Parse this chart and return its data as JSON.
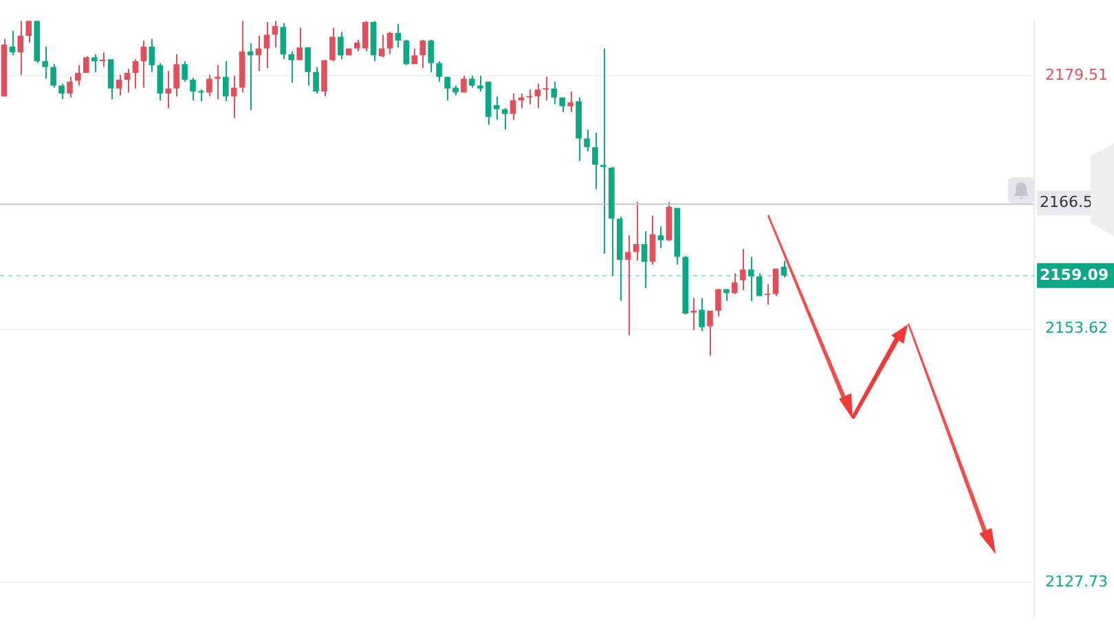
{
  "chart_data": {
    "type": "candlestick",
    "categories": [
      null,
      null,
      null,
      null,
      null,
      null,
      null,
      null,
      null,
      null,
      null,
      null,
      null,
      null,
      null,
      null,
      null,
      null,
      null,
      null,
      null,
      null,
      null,
      null,
      null,
      null,
      null,
      null,
      null,
      null,
      null,
      null,
      null,
      null,
      null,
      null,
      null,
      null,
      null,
      null,
      null,
      null,
      null,
      null,
      null,
      null,
      null,
      null,
      null,
      null,
      null,
      null,
      null,
      null,
      null,
      null,
      null,
      null,
      null,
      null,
      null,
      null,
      null,
      null,
      null,
      null,
      null,
      null,
      null,
      null,
      null,
      null,
      null,
      null,
      null,
      null,
      null,
      null,
      null,
      null,
      null,
      null,
      null,
      null,
      null,
      null,
      null,
      null,
      null,
      null,
      null,
      null,
      null,
      null,
      null,
      null,
      null,
      null,
      null,
      null,
      null,
      null,
      null,
      null,
      null,
      null,
      null,
      null,
      null,
      null,
      null,
      null,
      null,
      null,
      null,
      null,
      null,
      null,
      null,
      null,
      null,
      null,
      null,
      null,
      null,
      null
    ],
    "ohlc": [
      [
        2177.4,
        2183.3,
        2177.4,
        2182.7
      ],
      [
        2182.5,
        2184.1,
        2181.6,
        2181.9
      ],
      [
        2181.9,
        2185.1,
        2179.6,
        2183.6
      ],
      [
        2183.6,
        2185.1,
        2182.9,
        2185.1
      ],
      [
        2185.1,
        2185.1,
        2180.8,
        2181.0
      ],
      [
        2181.0,
        2182.5,
        2179.2,
        2180.4
      ],
      [
        2180.4,
        2180.7,
        2178.3,
        2178.5
      ],
      [
        2178.5,
        2178.7,
        2177.1,
        2177.7
      ],
      [
        2177.7,
        2179.4,
        2177.3,
        2178.9
      ],
      [
        2179.0,
        2180.6,
        2178.5,
        2179.8
      ],
      [
        2179.8,
        2181.5,
        2179.8,
        2181.4
      ],
      [
        2181.4,
        2181.7,
        2179.9,
        2181.0
      ],
      [
        2181.0,
        2181.9,
        2180.4,
        2181.1
      ],
      [
        2181.2,
        2181.2,
        2177.1,
        2178.2
      ],
      [
        2178.2,
        2179.6,
        2177.5,
        2179.1
      ],
      [
        2179.1,
        2180.2,
        2177.8,
        2179.8
      ],
      [
        2179.8,
        2181.2,
        2178.2,
        2181.0
      ],
      [
        2181.0,
        2183.1,
        2178.3,
        2182.5
      ],
      [
        2182.5,
        2183.3,
        2179.9,
        2180.6
      ],
      [
        2180.6,
        2180.8,
        2177.0,
        2177.7
      ],
      [
        2177.7,
        2180.0,
        2176.2,
        2178.2
      ],
      [
        2178.2,
        2181.7,
        2177.4,
        2180.7
      ],
      [
        2180.7,
        2181.0,
        2178.9,
        2179.1
      ],
      [
        2179.1,
        2179.3,
        2177.0,
        2177.9
      ],
      [
        2177.9,
        2178.1,
        2176.9,
        2177.8
      ],
      [
        2177.8,
        2179.6,
        2177.4,
        2179.2
      ],
      [
        2179.2,
        2180.6,
        2177.1,
        2179.4
      ],
      [
        2179.4,
        2181.0,
        2176.9,
        2177.4
      ],
      [
        2177.4,
        2179.5,
        2175.2,
        2178.3
      ],
      [
        2178.3,
        2185.1,
        2177.8,
        2182.0
      ],
      [
        2182.0,
        2182.8,
        2176.0,
        2181.6
      ],
      [
        2181.6,
        2183.6,
        2180.0,
        2182.3
      ],
      [
        2182.3,
        2185.0,
        2180.3,
        2183.7
      ],
      [
        2183.7,
        2185.1,
        2182.4,
        2184.6
      ],
      [
        2184.5,
        2184.9,
        2181.2,
        2181.7
      ],
      [
        2181.7,
        2182.0,
        2178.8,
        2181.1
      ],
      [
        2181.1,
        2184.4,
        2181.1,
        2182.4
      ],
      [
        2182.4,
        2182.4,
        2178.5,
        2179.9
      ],
      [
        2179.9,
        2180.4,
        2177.7,
        2177.9
      ],
      [
        2177.9,
        2181.1,
        2177.4,
        2181.1
      ],
      [
        2181.1,
        2184.4,
        2181.0,
        2183.5
      ],
      [
        2183.5,
        2184.0,
        2181.2,
        2181.6
      ],
      [
        2181.6,
        2182.3,
        2181.6,
        2182.3
      ],
      [
        2182.3,
        2183.2,
        2182.0,
        2182.9
      ],
      [
        2182.3,
        2185.1,
        2182.0,
        2185.0
      ],
      [
        2185.0,
        2185.1,
        2181.0,
        2181.6
      ],
      [
        2181.5,
        2183.7,
        2181.4,
        2182.3
      ],
      [
        2182.3,
        2184.0,
        2181.7,
        2183.9
      ],
      [
        2183.9,
        2184.8,
        2182.4,
        2183.1
      ],
      [
        2183.1,
        2183.2,
        2180.6,
        2180.7
      ],
      [
        2180.7,
        2182.3,
        2180.7,
        2181.6
      ],
      [
        2181.6,
        2183.2,
        2180.3,
        2183.1
      ],
      [
        2183.1,
        2183.2,
        2179.9,
        2180.8
      ],
      [
        2180.8,
        2181.0,
        2178.9,
        2179.4
      ],
      [
        2179.4,
        2179.4,
        2177.0,
        2178.2
      ],
      [
        2178.3,
        2178.5,
        2177.5,
        2177.8
      ],
      [
        2177.8,
        2179.5,
        2177.8,
        2179.2
      ],
      [
        2179.2,
        2179.5,
        2178.3,
        2178.5
      ],
      [
        2178.5,
        2179.5,
        2177.9,
        2178.2
      ],
      [
        2178.9,
        2178.9,
        2174.5,
        2175.3
      ],
      [
        2176.5,
        2177.4,
        2175.0,
        2176.1
      ],
      [
        2176.1,
        2176.2,
        2174.0,
        2175.6
      ],
      [
        2175.6,
        2177.7,
        2175.0,
        2177.0
      ],
      [
        2177.0,
        2177.7,
        2176.2,
        2177.3
      ],
      [
        2177.3,
        2178.1,
        2176.6,
        2177.4
      ],
      [
        2177.4,
        2178.7,
        2176.2,
        2178.1
      ],
      [
        2178.1,
        2179.4,
        2177.0,
        2178.2
      ],
      [
        2178.2,
        2178.9,
        2176.6,
        2177.3
      ],
      [
        2177.3,
        2177.3,
        2175.8,
        2176.4
      ],
      [
        2176.4,
        2177.9,
        2175.8,
        2176.8
      ],
      [
        2176.9,
        2177.3,
        2170.8,
        2173.1
      ],
      [
        2173.1,
        2174.0,
        2171.8,
        2172.2
      ],
      [
        2172.2,
        2173.7,
        2167.9,
        2170.4
      ],
      [
        2170.4,
        2182.3,
        2161.3,
        2170.2
      ],
      [
        2170.1,
        2170.2,
        2159.1,
        2164.9
      ],
      [
        2164.9,
        2165.1,
        2156.5,
        2160.7
      ],
      [
        2160.7,
        2163.2,
        2153.0,
        2161.5
      ],
      [
        2161.5,
        2166.6,
        2160.6,
        2162.3
      ],
      [
        2162.3,
        2163.6,
        2157.8,
        2160.5
      ],
      [
        2160.5,
        2165.2,
        2160.2,
        2163.3
      ],
      [
        2163.2,
        2164.1,
        2161.9,
        2162.7
      ],
      [
        2162.7,
        2166.6,
        2162.6,
        2166.1
      ],
      [
        2166.0,
        2166.0,
        2160.2,
        2161.0
      ],
      [
        2161.0,
        2161.1,
        2155.1,
        2155.2
      ],
      [
        2155.3,
        2156.8,
        2153.5,
        2155.5
      ],
      [
        2155.6,
        2156.8,
        2153.4,
        2153.8
      ],
      [
        2153.9,
        2155.5,
        2150.9,
        2155.5
      ],
      [
        2155.5,
        2157.7,
        2154.9,
        2157.7
      ],
      [
        2157.7,
        2157.7,
        2156.5,
        2157.3
      ],
      [
        2157.3,
        2159.3,
        2157.2,
        2158.4
      ],
      [
        2158.6,
        2161.8,
        2157.6,
        2159.7
      ],
      [
        2159.7,
        2161.0,
        2156.5,
        2159.0
      ],
      [
        2159.0,
        2159.3,
        2157.0,
        2157.0
      ],
      [
        2157.1,
        2158.2,
        2156.1,
        2157.2
      ],
      [
        2157.2,
        2159.8,
        2157.0,
        2159.8
      ],
      [
        2160.0,
        2160.6,
        2158.9,
        2159.09
      ],
      null,
      null,
      null,
      null,
      null,
      null,
      null,
      null,
      null,
      null,
      null,
      null,
      null,
      null,
      null,
      null,
      null,
      null,
      null,
      null,
      null,
      null,
      null,
      null,
      null,
      null,
      null,
      null,
      null,
      null
    ],
    "colors": [
      "#e0505c",
      "#0aa884",
      "#e0505c",
      "#e0505c",
      "#0aa884",
      "#0aa884",
      "#0aa884",
      "#0aa884",
      "#e0505c",
      "#e0505c",
      "#e0505c",
      "#0aa884",
      "#e0505c",
      "#0aa884",
      "#e0505c",
      "#e0505c",
      "#e0505c",
      "#e0505c",
      "#0aa884",
      "#0aa884",
      "#e0505c",
      "#e0505c",
      "#0aa884",
      "#0aa884",
      "#0aa884",
      "#e0505c",
      "#e0505c",
      "#0aa884",
      "#e0505c",
      "#e0505c",
      "#0aa884",
      "#e0505c",
      "#e0505c",
      "#e0505c",
      "#0aa884",
      "#0aa884",
      "#e0505c",
      "#0aa884",
      "#0aa884",
      "#e0505c",
      "#e0505c",
      "#0aa884",
      "#e0505c",
      "#e0505c",
      "#e0505c",
      "#0aa884",
      "#e0505c",
      "#e0505c",
      "#0aa884",
      "#0aa884",
      "#e0505c",
      "#e0505c",
      "#0aa884",
      "#0aa884",
      "#0aa884",
      "#0aa884",
      "#e0505c",
      "#0aa884",
      "#0aa884",
      "#0aa884",
      "#0aa884",
      "#0aa884",
      "#e0505c",
      "#e0505c",
      "#e0505c",
      "#e0505c",
      "#e0505c",
      "#0aa884",
      "#0aa884",
      "#e0505c",
      "#0aa884",
      "#0aa884",
      "#0aa884",
      "#0aa884",
      "#0aa884",
      "#0aa884",
      "#e0505c",
      "#e0505c",
      "#0aa884",
      "#e0505c",
      "#0aa884",
      "#e0505c",
      "#0aa884",
      "#0aa884",
      "#e0505c",
      "#0aa884",
      "#e0505c",
      "#e0505c",
      "#0aa884",
      "#e0505c",
      "#e0505c",
      "#0aa884",
      "#0aa884",
      "#e0505c",
      "#e0505c",
      "#0aa884",
      null,
      null,
      null,
      null,
      null,
      null,
      null,
      null,
      null,
      null,
      null,
      null,
      null,
      null,
      null,
      null,
      null,
      null,
      null,
      null,
      null,
      null,
      null,
      null,
      null,
      null,
      null,
      null,
      null,
      null
    ],
    "ylim": [
      2124.1,
      2185.2
    ],
    "yticks": [
      2127.73,
      2153.62,
      2179.51
    ],
    "ref_lines": [
      {
        "axis": "y",
        "value": 2166.5,
        "label": "2166.5",
        "color": "#c8c8c8"
      },
      {
        "axis": "y",
        "value": 2159.09,
        "label": "2159.09",
        "color": "#0aa884",
        "line_style": "dashed"
      }
    ],
    "grid": "y",
    "tick_labels": "y",
    "legend": false
  }
}
